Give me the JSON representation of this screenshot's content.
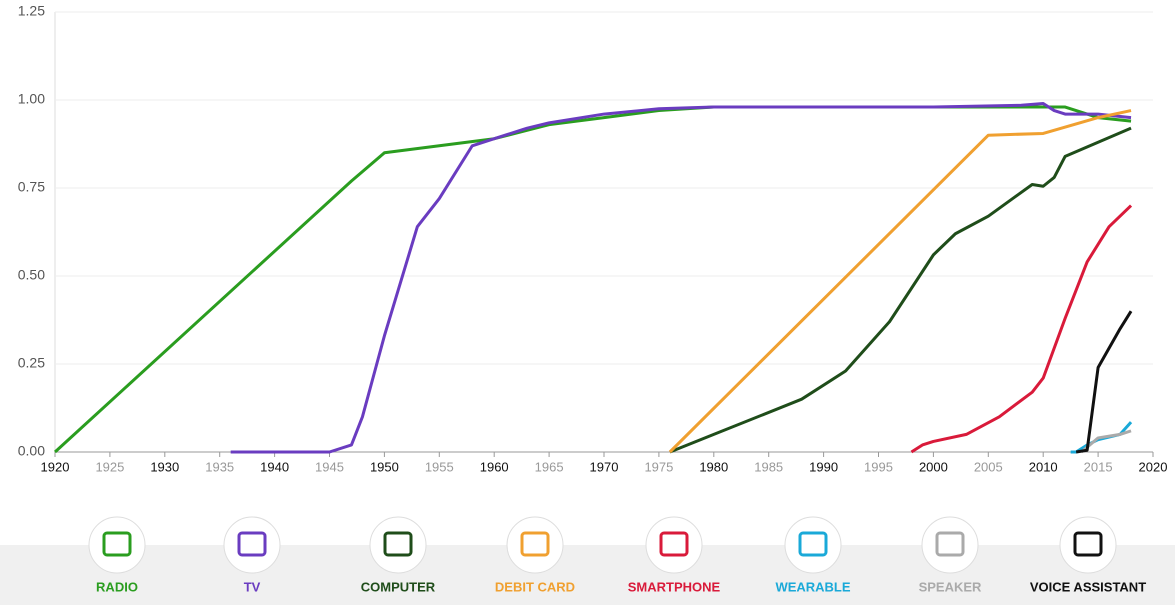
{
  "chart_data": {
    "type": "line",
    "xlim": [
      1920,
      2020
    ],
    "xticks": [
      1920,
      1925,
      1930,
      1935,
      1940,
      1945,
      1950,
      1955,
      1960,
      1965,
      1970,
      1975,
      1980,
      1985,
      1990,
      1995,
      2000,
      2005,
      2010,
      2015,
      2020
    ],
    "ylim": [
      0,
      1.25
    ],
    "yticks": [
      {
        "value": 0,
        "label": "0.00"
      },
      {
        "value": 0.25,
        "label": "0.25"
      },
      {
        "value": 0.5,
        "label": "0.50"
      },
      {
        "value": 0.75,
        "label": "0.75"
      },
      {
        "value": 1,
        "label": "1.00"
      },
      {
        "value": 1.25,
        "label": "1.25"
      }
    ],
    "grid": true,
    "series": [
      {
        "name": "RADIO",
        "color": "#2a9d1f",
        "x": [
          1920,
          1947,
          1950,
          1955,
          1960,
          1965,
          1970,
          1975,
          1980,
          2012,
          2015,
          2018
        ],
        "values": [
          0,
          0.77,
          0.85,
          0.87,
          0.89,
          0.93,
          0.95,
          0.97,
          0.98,
          0.98,
          0.95,
          0.94
        ]
      },
      {
        "name": "TV",
        "color": "#6a3cc0",
        "x": [
          1936,
          1945,
          1947,
          1948,
          1950,
          1953,
          1955,
          1958,
          1960,
          1963,
          1965,
          1970,
          1975,
          1980,
          2000,
          2008,
          2010,
          2011,
          2012,
          2015,
          2018
        ],
        "values": [
          0,
          0,
          0.02,
          0.1,
          0.33,
          0.64,
          0.72,
          0.87,
          0.89,
          0.92,
          0.935,
          0.96,
          0.975,
          0.98,
          0.98,
          0.985,
          0.99,
          0.97,
          0.96,
          0.96,
          0.95
        ]
      },
      {
        "name": "COMPUTER",
        "color": "#1f4d1a",
        "x": [
          1976,
          1980,
          1988,
          1992,
          1996,
          2000,
          2002,
          2005,
          2009,
          2010,
          2011,
          2012,
          2015,
          2018
        ],
        "values": [
          0,
          0.05,
          0.15,
          0.23,
          0.37,
          0.56,
          0.62,
          0.67,
          0.76,
          0.755,
          0.78,
          0.84,
          0.88,
          0.92
        ]
      },
      {
        "name": "DEBIT CARD",
        "color": "#f0a030",
        "x": [
          1976,
          2005,
          2010,
          2015,
          2018
        ],
        "values": [
          0,
          0.9,
          0.905,
          0.95,
          0.97
        ]
      },
      {
        "name": "SMARTPHONE",
        "color": "#d91a3a",
        "x": [
          1998,
          1999,
          2000,
          2003,
          2006,
          2009,
          2010,
          2012,
          2014,
          2016,
          2018
        ],
        "values": [
          0,
          0.02,
          0.03,
          0.05,
          0.1,
          0.17,
          0.21,
          0.38,
          0.54,
          0.64,
          0.7
        ]
      },
      {
        "name": "WEARABLE",
        "color": "#1aa9d8",
        "x": [
          2012.5,
          2013,
          2014,
          2015,
          2017,
          2018
        ],
        "values": [
          0,
          0,
          0.02,
          0.035,
          0.05,
          0.085
        ]
      },
      {
        "name": "SPEAKER",
        "color": "#aaaaaa",
        "x": [
          2013.5,
          2015,
          2017,
          2018
        ],
        "values": [
          0,
          0.04,
          0.05,
          0.06
        ]
      },
      {
        "name": "VOICE ASSISTANT",
        "color": "#111111",
        "x": [
          2013,
          2014,
          2015,
          2017,
          2018
        ],
        "values": [
          0,
          0.005,
          0.24,
          0.35,
          0.4
        ]
      }
    ]
  }
}
